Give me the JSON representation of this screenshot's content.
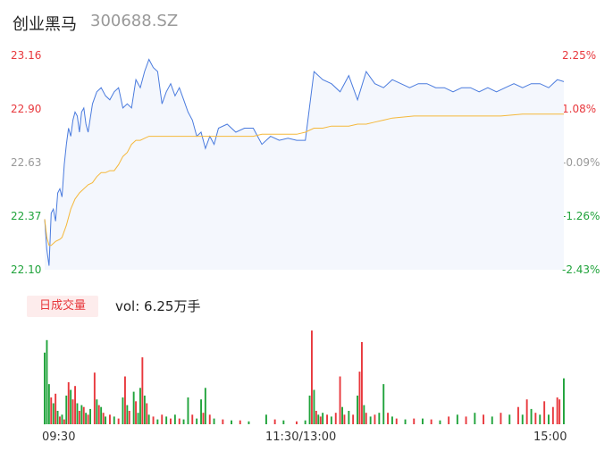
{
  "header": {
    "name": "创业黑马",
    "code": "300688.SZ"
  },
  "colors": {
    "up": "#e8383d",
    "down": "#20a33b",
    "neutral": "#999999",
    "price_line": "#4a7bde",
    "avg_line": "#f5b83b",
    "fill": "#f4f7fd",
    "badge_bg": "#fdecec",
    "badge_text": "#e8383d"
  },
  "volume_panel": {
    "badge": "日成交量",
    "label": "vol: 6.25万手"
  },
  "chart_data": [
    {
      "type": "line",
      "title": "",
      "y_price_ticks": [
        "23.16",
        "22.90",
        "22.63",
        "22.37",
        "22.10"
      ],
      "y_pct_ticks": [
        "2.25%",
        "1.08%",
        "-0.09%",
        "-1.26%",
        "-2.43%"
      ],
      "tick_colors": [
        "up",
        "up",
        "neutral",
        "down",
        "down"
      ],
      "ylim": [
        22.1,
        23.16
      ],
      "x_ticks": [
        "09:30",
        "11:30/13:00",
        "15:00"
      ],
      "x_count": 240,
      "series": [
        {
          "key": "price",
          "x": [
            0,
            1,
            2,
            3,
            4,
            5,
            6,
            7,
            8,
            9,
            10,
            11,
            12,
            13,
            14,
            15,
            16,
            17,
            18,
            19,
            20,
            22,
            24,
            26,
            28,
            30,
            32,
            34,
            36,
            38,
            40,
            42,
            44,
            46,
            48,
            50,
            52,
            54,
            56,
            58,
            60,
            62,
            64,
            66,
            68,
            70,
            72,
            74,
            76,
            78,
            80,
            84,
            88,
            92,
            96,
            100,
            104,
            108,
            112,
            116,
            120,
            124,
            128,
            132,
            136,
            140,
            144,
            148,
            152,
            156,
            160,
            164,
            168,
            172,
            176,
            180,
            184,
            188,
            192,
            196,
            200,
            204,
            208,
            212,
            216,
            220,
            224,
            228,
            232,
            236,
            239
          ],
          "values": [
            22.35,
            22.2,
            22.12,
            22.38,
            22.4,
            22.34,
            22.48,
            22.5,
            22.46,
            22.62,
            22.72,
            22.8,
            22.76,
            22.84,
            22.88,
            22.86,
            22.78,
            22.88,
            22.9,
            22.82,
            22.78,
            22.92,
            22.98,
            23.0,
            22.96,
            22.94,
            22.98,
            23.0,
            22.9,
            22.92,
            22.9,
            23.04,
            23.0,
            23.08,
            23.14,
            23.1,
            23.08,
            22.92,
            22.98,
            23.02,
            22.96,
            23.0,
            22.94,
            22.88,
            22.84,
            22.76,
            22.78,
            22.7,
            22.76,
            22.72,
            22.8,
            22.82,
            22.78,
            22.8,
            22.8,
            22.72,
            22.76,
            22.74,
            22.75,
            22.74,
            22.74,
            23.08,
            23.04,
            23.02,
            22.98,
            23.06,
            22.94,
            23.08,
            23.02,
            23.0,
            23.04,
            23.02,
            23.0,
            23.02,
            23.02,
            23.0,
            23.0,
            22.98,
            23.0,
            23.0,
            22.98,
            23.0,
            22.98,
            23.0,
            23.02,
            23.0,
            23.02,
            23.02,
            23.0,
            23.04,
            23.03
          ]
        },
        {
          "key": "average",
          "x": [
            0,
            1,
            2,
            3,
            5,
            7,
            8,
            10,
            12,
            14,
            16,
            18,
            20,
            22,
            24,
            26,
            28,
            30,
            32,
            34,
            36,
            38,
            40,
            42,
            44,
            46,
            48,
            52,
            56,
            60,
            64,
            68,
            72,
            76,
            80,
            84,
            88,
            92,
            96,
            100,
            104,
            108,
            112,
            116,
            120,
            124,
            128,
            132,
            136,
            140,
            144,
            148,
            152,
            156,
            160,
            170,
            180,
            190,
            200,
            210,
            220,
            230,
            239
          ],
          "values": [
            22.35,
            22.26,
            22.22,
            22.22,
            22.24,
            22.25,
            22.26,
            22.32,
            22.4,
            22.45,
            22.48,
            22.5,
            22.52,
            22.53,
            22.56,
            22.58,
            22.58,
            22.59,
            22.59,
            22.62,
            22.66,
            22.68,
            22.72,
            22.74,
            22.74,
            22.75,
            22.76,
            22.76,
            22.76,
            22.76,
            22.76,
            22.76,
            22.76,
            22.76,
            22.76,
            22.76,
            22.76,
            22.76,
            22.76,
            22.77,
            22.77,
            22.77,
            22.77,
            22.77,
            22.78,
            22.8,
            22.8,
            22.81,
            22.81,
            22.81,
            22.82,
            22.82,
            22.83,
            22.84,
            22.85,
            22.86,
            22.86,
            22.86,
            22.86,
            22.86,
            22.87,
            22.87,
            22.87
          ]
        }
      ]
    },
    {
      "type": "bar",
      "title": "vol: 6.25万手",
      "bars": [
        {
          "x": 0,
          "v": 0.75,
          "c": "down"
        },
        {
          "x": 1,
          "v": 0.88,
          "c": "down"
        },
        {
          "x": 2,
          "v": 0.42,
          "c": "down"
        },
        {
          "x": 3,
          "v": 0.28,
          "c": "up"
        },
        {
          "x": 4,
          "v": 0.22,
          "c": "down"
        },
        {
          "x": 5,
          "v": 0.32,
          "c": "up"
        },
        {
          "x": 6,
          "v": 0.14,
          "c": "down"
        },
        {
          "x": 7,
          "v": 0.08,
          "c": "up"
        },
        {
          "x": 8,
          "v": 0.1,
          "c": "down"
        },
        {
          "x": 9,
          "v": 0.05,
          "c": "up"
        },
        {
          "x": 10,
          "v": 0.3,
          "c": "down"
        },
        {
          "x": 11,
          "v": 0.44,
          "c": "up"
        },
        {
          "x": 12,
          "v": 0.36,
          "c": "down"
        },
        {
          "x": 13,
          "v": 0.26,
          "c": "up"
        },
        {
          "x": 14,
          "v": 0.4,
          "c": "up"
        },
        {
          "x": 15,
          "v": 0.22,
          "c": "down"
        },
        {
          "x": 16,
          "v": 0.14,
          "c": "up"
        },
        {
          "x": 17,
          "v": 0.2,
          "c": "down"
        },
        {
          "x": 18,
          "v": 0.18,
          "c": "up"
        },
        {
          "x": 19,
          "v": 0.12,
          "c": "down"
        },
        {
          "x": 20,
          "v": 0.1,
          "c": "up"
        },
        {
          "x": 21,
          "v": 0.16,
          "c": "down"
        },
        {
          "x": 23,
          "v": 0.54,
          "c": "up"
        },
        {
          "x": 24,
          "v": 0.26,
          "c": "down"
        },
        {
          "x": 25,
          "v": 0.2,
          "c": "up"
        },
        {
          "x": 26,
          "v": 0.18,
          "c": "down"
        },
        {
          "x": 27,
          "v": 0.12,
          "c": "up"
        },
        {
          "x": 28,
          "v": 0.08,
          "c": "down"
        },
        {
          "x": 30,
          "v": 0.1,
          "c": "up"
        },
        {
          "x": 32,
          "v": 0.08,
          "c": "down"
        },
        {
          "x": 34,
          "v": 0.06,
          "c": "up"
        },
        {
          "x": 36,
          "v": 0.28,
          "c": "down"
        },
        {
          "x": 37,
          "v": 0.5,
          "c": "up"
        },
        {
          "x": 38,
          "v": 0.2,
          "c": "down"
        },
        {
          "x": 39,
          "v": 0.14,
          "c": "up"
        },
        {
          "x": 41,
          "v": 0.34,
          "c": "down"
        },
        {
          "x": 42,
          "v": 0.24,
          "c": "up"
        },
        {
          "x": 43,
          "v": 0.12,
          "c": "down"
        },
        {
          "x": 44,
          "v": 0.38,
          "c": "down"
        },
        {
          "x": 45,
          "v": 0.7,
          "c": "up"
        },
        {
          "x": 46,
          "v": 0.3,
          "c": "down"
        },
        {
          "x": 47,
          "v": 0.22,
          "c": "up"
        },
        {
          "x": 48,
          "v": 0.1,
          "c": "down"
        },
        {
          "x": 50,
          "v": 0.08,
          "c": "up"
        },
        {
          "x": 52,
          "v": 0.05,
          "c": "down"
        },
        {
          "x": 54,
          "v": 0.1,
          "c": "up"
        },
        {
          "x": 56,
          "v": 0.08,
          "c": "down"
        },
        {
          "x": 58,
          "v": 0.06,
          "c": "up"
        },
        {
          "x": 60,
          "v": 0.1,
          "c": "down"
        },
        {
          "x": 62,
          "v": 0.06,
          "c": "up"
        },
        {
          "x": 64,
          "v": 0.05,
          "c": "down"
        },
        {
          "x": 66,
          "v": 0.28,
          "c": "down"
        },
        {
          "x": 68,
          "v": 0.1,
          "c": "up"
        },
        {
          "x": 70,
          "v": 0.06,
          "c": "down"
        },
        {
          "x": 72,
          "v": 0.26,
          "c": "down"
        },
        {
          "x": 73,
          "v": 0.12,
          "c": "up"
        },
        {
          "x": 74,
          "v": 0.38,
          "c": "down"
        },
        {
          "x": 76,
          "v": 0.1,
          "c": "up"
        },
        {
          "x": 78,
          "v": 0.06,
          "c": "down"
        },
        {
          "x": 82,
          "v": 0.05,
          "c": "up"
        },
        {
          "x": 86,
          "v": 0.04,
          "c": "down"
        },
        {
          "x": 90,
          "v": 0.04,
          "c": "up"
        },
        {
          "x": 94,
          "v": 0.03,
          "c": "down"
        },
        {
          "x": 102,
          "v": 0.1,
          "c": "down"
        },
        {
          "x": 106,
          "v": 0.05,
          "c": "up"
        },
        {
          "x": 110,
          "v": 0.04,
          "c": "down"
        },
        {
          "x": 116,
          "v": 0.03,
          "c": "up"
        },
        {
          "x": 120,
          "v": 0.04,
          "c": "down"
        },
        {
          "x": 122,
          "v": 0.3,
          "c": "down"
        },
        {
          "x": 123,
          "v": 0.98,
          "c": "up"
        },
        {
          "x": 124,
          "v": 0.36,
          "c": "down"
        },
        {
          "x": 125,
          "v": 0.14,
          "c": "up"
        },
        {
          "x": 126,
          "v": 0.1,
          "c": "down"
        },
        {
          "x": 127,
          "v": 0.08,
          "c": "up"
        },
        {
          "x": 128,
          "v": 0.12,
          "c": "down"
        },
        {
          "x": 130,
          "v": 0.1,
          "c": "up"
        },
        {
          "x": 132,
          "v": 0.08,
          "c": "down"
        },
        {
          "x": 134,
          "v": 0.12,
          "c": "up"
        },
        {
          "x": 136,
          "v": 0.5,
          "c": "up"
        },
        {
          "x": 137,
          "v": 0.18,
          "c": "down"
        },
        {
          "x": 138,
          "v": 0.1,
          "c": "up"
        },
        {
          "x": 140,
          "v": 0.14,
          "c": "down"
        },
        {
          "x": 142,
          "v": 0.1,
          "c": "up"
        },
        {
          "x": 144,
          "v": 0.3,
          "c": "down"
        },
        {
          "x": 145,
          "v": 0.55,
          "c": "up"
        },
        {
          "x": 146,
          "v": 0.86,
          "c": "up"
        },
        {
          "x": 147,
          "v": 0.2,
          "c": "down"
        },
        {
          "x": 148,
          "v": 0.12,
          "c": "up"
        },
        {
          "x": 150,
          "v": 0.08,
          "c": "down"
        },
        {
          "x": 152,
          "v": 0.1,
          "c": "up"
        },
        {
          "x": 154,
          "v": 0.12,
          "c": "down"
        },
        {
          "x": 156,
          "v": 0.42,
          "c": "down"
        },
        {
          "x": 158,
          "v": 0.12,
          "c": "up"
        },
        {
          "x": 160,
          "v": 0.08,
          "c": "down"
        },
        {
          "x": 162,
          "v": 0.06,
          "c": "up"
        },
        {
          "x": 166,
          "v": 0.05,
          "c": "down"
        },
        {
          "x": 170,
          "v": 0.06,
          "c": "up"
        },
        {
          "x": 174,
          "v": 0.06,
          "c": "down"
        },
        {
          "x": 178,
          "v": 0.05,
          "c": "up"
        },
        {
          "x": 182,
          "v": 0.04,
          "c": "down"
        },
        {
          "x": 186,
          "v": 0.08,
          "c": "up"
        },
        {
          "x": 190,
          "v": 0.1,
          "c": "down"
        },
        {
          "x": 194,
          "v": 0.08,
          "c": "up"
        },
        {
          "x": 198,
          "v": 0.12,
          "c": "down"
        },
        {
          "x": 202,
          "v": 0.1,
          "c": "up"
        },
        {
          "x": 206,
          "v": 0.08,
          "c": "down"
        },
        {
          "x": 210,
          "v": 0.12,
          "c": "up"
        },
        {
          "x": 214,
          "v": 0.1,
          "c": "down"
        },
        {
          "x": 218,
          "v": 0.18,
          "c": "up"
        },
        {
          "x": 220,
          "v": 0.1,
          "c": "down"
        },
        {
          "x": 222,
          "v": 0.26,
          "c": "up"
        },
        {
          "x": 224,
          "v": 0.16,
          "c": "down"
        },
        {
          "x": 226,
          "v": 0.12,
          "c": "up"
        },
        {
          "x": 228,
          "v": 0.1,
          "c": "down"
        },
        {
          "x": 230,
          "v": 0.24,
          "c": "up"
        },
        {
          "x": 232,
          "v": 0.1,
          "c": "down"
        },
        {
          "x": 234,
          "v": 0.18,
          "c": "up"
        },
        {
          "x": 236,
          "v": 0.28,
          "c": "up"
        },
        {
          "x": 237,
          "v": 0.26,
          "c": "up"
        },
        {
          "x": 239,
          "v": 0.48,
          "c": "down"
        }
      ]
    }
  ]
}
